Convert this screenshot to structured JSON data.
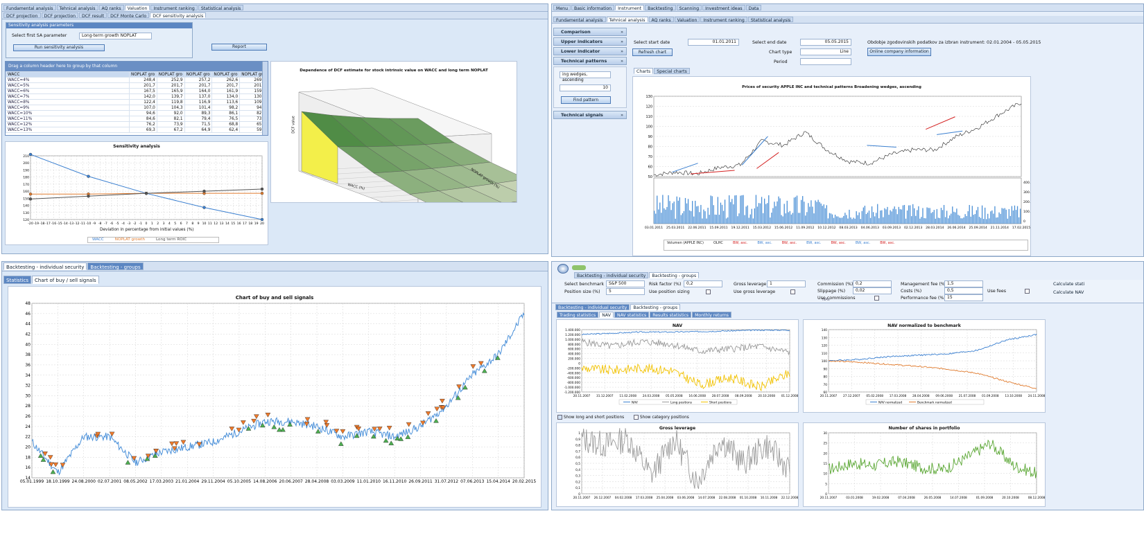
{
  "p1": {
    "tabs": [
      "Fundamental analysis",
      "Tehnical analysis",
      "AQ ranks",
      "Valuation",
      "Instrument ranking",
      "Statistical analysis"
    ],
    "subtabs": [
      "DCF projection",
      "DCF projection",
      "DCF result",
      "DCF Monte Carlo",
      "DCF sensitivity analysis"
    ],
    "params_title": "Sensitivity analysis parameters",
    "param_label": "Select first SA parameter",
    "param_value": "Long-term growth NOPLAT",
    "run_btn": "Run sensitivity analysis",
    "report_btn": "Report",
    "drag_hint": "Drag a column header here to group by that column",
    "grid_cols": [
      "WACC",
      "NOPLAT gro",
      "NOPLAT gro",
      "NOPLAT gro",
      "NOPLAT gro",
      "NOPLAT gro"
    ],
    "grid_rows": [
      [
        "WACC=4%",
        "248,4",
        "252,9",
        "257,2",
        "262,6",
        "269,5"
      ],
      [
        "WACC=5%",
        "201,7",
        "201,7",
        "201,7",
        "201,7",
        "201,7"
      ],
      [
        "WACC=6%",
        "167,5",
        "165,9",
        "164,0",
        "161,9",
        "159,3"
      ],
      [
        "WACC=7%",
        "142,0",
        "139,7",
        "137,0",
        "134,0",
        "130,5"
      ],
      [
        "WACC=8%",
        "122,4",
        "119,8",
        "116,9",
        "113,6",
        "109,8"
      ],
      [
        "WACC=9%",
        "107,0",
        "104,3",
        "101,4",
        "98,2",
        "94,5"
      ],
      [
        "WACC=10%",
        "94,6",
        "92,0",
        "89,3",
        "86,1",
        "82,7"
      ],
      [
        "WACC=11%",
        "84,6",
        "82,1",
        "79,4",
        "76,5",
        "73,3"
      ],
      [
        "WACC=12%",
        "76,2",
        "73,9",
        "71,5",
        "68,8",
        "65,9"
      ],
      [
        "WACC=13%",
        "69,3",
        "67,2",
        "64,9",
        "62,4",
        "59,8"
      ]
    ],
    "sa_chart_title": "Sensitivity analysis",
    "sa_xlabel": "Deviation in percentage from initial values (%)",
    "surface_title": "Dependence of DCF estimate for stock intrinsic value on WACC and long term NOPLAT",
    "surface_xlabel": "WACC (%)",
    "surface_ylabel": "NOPLAT growth (%)",
    "surface_zlabel": "DCF value"
  },
  "p2": {
    "menu": [
      "Menu",
      "Basic information",
      "Instrument",
      "Backtesting",
      "Scanning",
      "Investment ideas",
      "Data"
    ],
    "tabs": [
      "Fundamental analysis",
      "Tehnical analysis",
      "AQ ranks",
      "Valuation",
      "Instrument ranking",
      "Statistical analysis"
    ],
    "side": [
      "Comparison",
      "Upper indicators",
      "Lower indicator",
      "Technical patterns",
      "Technical signals"
    ],
    "pattern_value": "ing wedges, ascending",
    "pattern_num": "10",
    "find_btn": "Find pattern",
    "start_label": "Select start date",
    "start_value": "01.01.2011",
    "end_label": "Select end date",
    "end_value": "05.05.2015",
    "refresh_btn": "Refresh chart",
    "charttype_label": "Chart type",
    "charttype_value": "Line",
    "period_label": "Period",
    "period_value": "",
    "history_text": "Obdobje zgodovinskih podatkov za izbran instrument: 02.01.2004 - 05.05.2015",
    "online_btn": "Online company information",
    "chart_tabs": [
      "Charts",
      "Special charts"
    ],
    "chart_title": "Prices of security APPLE INC and technical patterns Broadening wedges, ascending",
    "vol_ticks": [
      "400.000.000",
      "300.000.000",
      "200.000.000",
      "100.000.000",
      "0"
    ],
    "legend": [
      "Volumen (APPLE INC)",
      "OLHC",
      "BW, asc.",
      "BW, asc.",
      "BW, asc.",
      "BW, asc.",
      "BW, asc.",
      "BW, asc.",
      "BW, asc."
    ]
  },
  "p3": {
    "tabs": [
      "Backtesting - individual security",
      "Backtesting - groups"
    ],
    "subtabs": [
      "Statistics",
      "Chart of buy / sell signals"
    ]
  },
  "p4": {
    "tabs": [
      "Backtesting - individual security",
      "Backtesting - groups"
    ],
    "fields": [
      {
        "label": "Select benchmark",
        "value": "S&P 500"
      },
      {
        "label": "Position size (%)",
        "value": "5"
      },
      {
        "label": "Risk factor (%)",
        "value": "0,2"
      },
      {
        "label": "Use position sizing",
        "value": ""
      },
      {
        "label": "Gross leverage",
        "value": "1"
      },
      {
        "label": "Use gross leverage",
        "value": ""
      },
      {
        "label": "Commission (%)",
        "value": "0,2"
      },
      {
        "label": "Slippage (%)",
        "value": "0,02"
      },
      {
        "label": "Use commissions",
        "value": ""
      },
      {
        "label": "Management fee (%)",
        "value": "1,5"
      },
      {
        "label": "Costs (%)",
        "value": "0,5"
      },
      {
        "label": "Performance fee (%)",
        "value": "15"
      },
      {
        "label": "Use fees",
        "value": ""
      }
    ],
    "calc_btns": [
      "Calculate stati",
      "Calculate NAV"
    ],
    "section": "NAV",
    "subtabs": [
      "Backtesting - individual security",
      "Backtesting - groups"
    ],
    "result_tabs": [
      "Trading statistics",
      "NAV",
      "NAV statistics",
      "Results statistics",
      "Monthly returns"
    ],
    "show_long_short": "Show long and short positions",
    "show_category": "Show category positions",
    "nav_title": "NAV",
    "nav_legend": [
      "NAV",
      "Long positions",
      "Short positions"
    ],
    "navn_title": "NAV normalized to benchmark",
    "navn_legend": [
      "NAV normalized",
      "Benchmark normalized"
    ],
    "lev_title": "Gross leverage",
    "shares_title": "Number of shares in portfolio"
  },
  "chart_data": [
    {
      "type": "line",
      "title": "Sensitivity analysis",
      "xlabel": "Deviation in percentage from initial values (%)",
      "x": [
        -20,
        -10,
        0,
        10,
        20
      ],
      "series": [
        {
          "name": "WACC",
          "values": [
            212,
            181,
            157,
            137,
            120
          ]
        },
        {
          "name": "NOPLAT growth",
          "values": [
            156,
            156,
            157,
            157,
            157
          ]
        },
        {
          "name": "Long term ROIC",
          "values": [
            149,
            153,
            157,
            160,
            163
          ]
        }
      ],
      "ylim": [
        120,
        210
      ],
      "yticks": [
        120,
        130,
        140,
        150,
        160,
        170,
        180,
        190,
        200,
        210
      ],
      "xticks": [
        "-20",
        "-19",
        "-18",
        "-17",
        "-16",
        "-15",
        "-14",
        "-13",
        "-12",
        "-11",
        "-10",
        "-9",
        "-8",
        "-7",
        "-6",
        "-5",
        "-4",
        "-3",
        "-2",
        "-1",
        "0",
        "1",
        "2",
        "3",
        "4",
        "5",
        "6",
        "7",
        "8",
        "9",
        "10",
        "11",
        "12",
        "13",
        "14",
        "15",
        "16",
        "17",
        "18",
        "19",
        "20"
      ]
    },
    {
      "type": "line",
      "title": "Prices of security APPLE INC and technical patterns Broadening wedges, ascending",
      "x": [
        "03.01.2011",
        "25.03.2011",
        "22.06.2011",
        "15.09.2011",
        "19.12.2011",
        "15.03.2012",
        "15.06.2012",
        "11.09.2012",
        "10.12.2012",
        "08.03.2013",
        "04.06.2013",
        "03.09.2013",
        "02.12.2013",
        "28.03.2014",
        "26.06.2014",
        "25.09.2014",
        "21.11.2014",
        "17.02.2015"
      ],
      "yticks": [
        50,
        60,
        70,
        80,
        90,
        100,
        110,
        120,
        130
      ],
      "series": [
        {
          "name": "OLHC",
          "values": [
            47,
            50,
            48,
            55,
            58,
            85,
            80,
            95,
            75,
            62,
            60,
            70,
            75,
            75,
            90,
            100,
            115,
            128
          ]
        }
      ]
    },
    {
      "type": "line",
      "title": "Chart of buy and sell signals",
      "x": [
        "05.01.1999",
        "18.10.1999",
        "24.08.2000",
        "02.07.2001",
        "08.05.2002",
        "17.03.2003",
        "21.01.2004",
        "29.11.2004",
        "05.10.2005",
        "14.08.2006",
        "20.06.2007",
        "28.04.2008",
        "03.03.2009",
        "11.01.2010",
        "16.11.2010",
        "26.09.2011",
        "31.07.2012",
        "07.06.2013",
        "15.04.2014",
        "20.02.2015"
      ],
      "ylim": [
        14,
        48
      ],
      "yticks": [
        14,
        16,
        18,
        20,
        22,
        24,
        26,
        28,
        30,
        32,
        34,
        36,
        38,
        40,
        42,
        44,
        46,
        48
      ],
      "series": [
        {
          "name": "Price",
          "values": [
            21,
            15,
            22,
            22,
            17,
            19,
            20,
            21,
            23,
            25,
            25,
            24,
            22,
            23,
            22,
            24,
            28,
            34,
            38,
            46
          ]
        }
      ]
    },
    {
      "type": "line",
      "title": "NAV",
      "x": [
        "20.11.2007",
        "31.12.2007",
        "11.02.2008",
        "24.03.2008",
        "05.05.2008",
        "16.06.2008",
        "28.07.2008",
        "08.09.2008",
        "20.10.2008",
        "01.12.2008"
      ],
      "yticks": [
        "1.400.000",
        "1.200.000",
        "1.000.000",
        "800.000",
        "600.000",
        "400.000",
        "200.000",
        "0",
        "-200.000",
        "-400.000",
        "-600.000",
        "-800.000",
        "-1.000.000",
        "-1.200.000"
      ]
    },
    {
      "type": "line",
      "title": "NAV normalized to benchmark",
      "x": [
        "20.11.2007",
        "27.12.2007",
        "05.02.2008",
        "17.03.2008",
        "28.04.2008",
        "09.06.2008",
        "21.07.2008",
        "01.09.2008",
        "13.10.2008",
        "24.11.2008"
      ],
      "yticks": [
        60,
        70,
        80,
        90,
        100,
        110,
        120,
        130,
        140
      ]
    },
    {
      "type": "line",
      "title": "Gross leverage",
      "x": [
        "20.11.2007",
        "26.12.2007",
        "04.02.2008",
        "17.03.2008",
        "25.04.2008",
        "03.06.2008",
        "14.07.2008",
        "22.08.2008",
        "01.10.2008",
        "10.11.2008",
        "22.12.2008"
      ],
      "yticks": [
        "0",
        "0,1",
        "0,2",
        "0,3",
        "0,4",
        "0,5",
        "0,6",
        "0,7",
        "0,8",
        "0,9",
        "1"
      ]
    },
    {
      "type": "line",
      "title": "Number of shares in portfolio",
      "x": [
        "20.11.2007",
        "03.01.2008",
        "19.02.2008",
        "07.04.2008",
        "26.05.2008",
        "14.07.2008",
        "01.09.2008",
        "20.10.2008",
        "08.12.2008"
      ],
      "yticks": [
        0,
        5,
        10,
        15,
        20,
        25,
        30
      ]
    }
  ],
  "colors": {
    "accent": "#4a90d9",
    "blue": "#3a7fd0",
    "orange": "#e07b2e",
    "gray": "#9a9a9a",
    "green": "#59a632",
    "yellow": "#f2c200",
    "red": "#d42020"
  }
}
